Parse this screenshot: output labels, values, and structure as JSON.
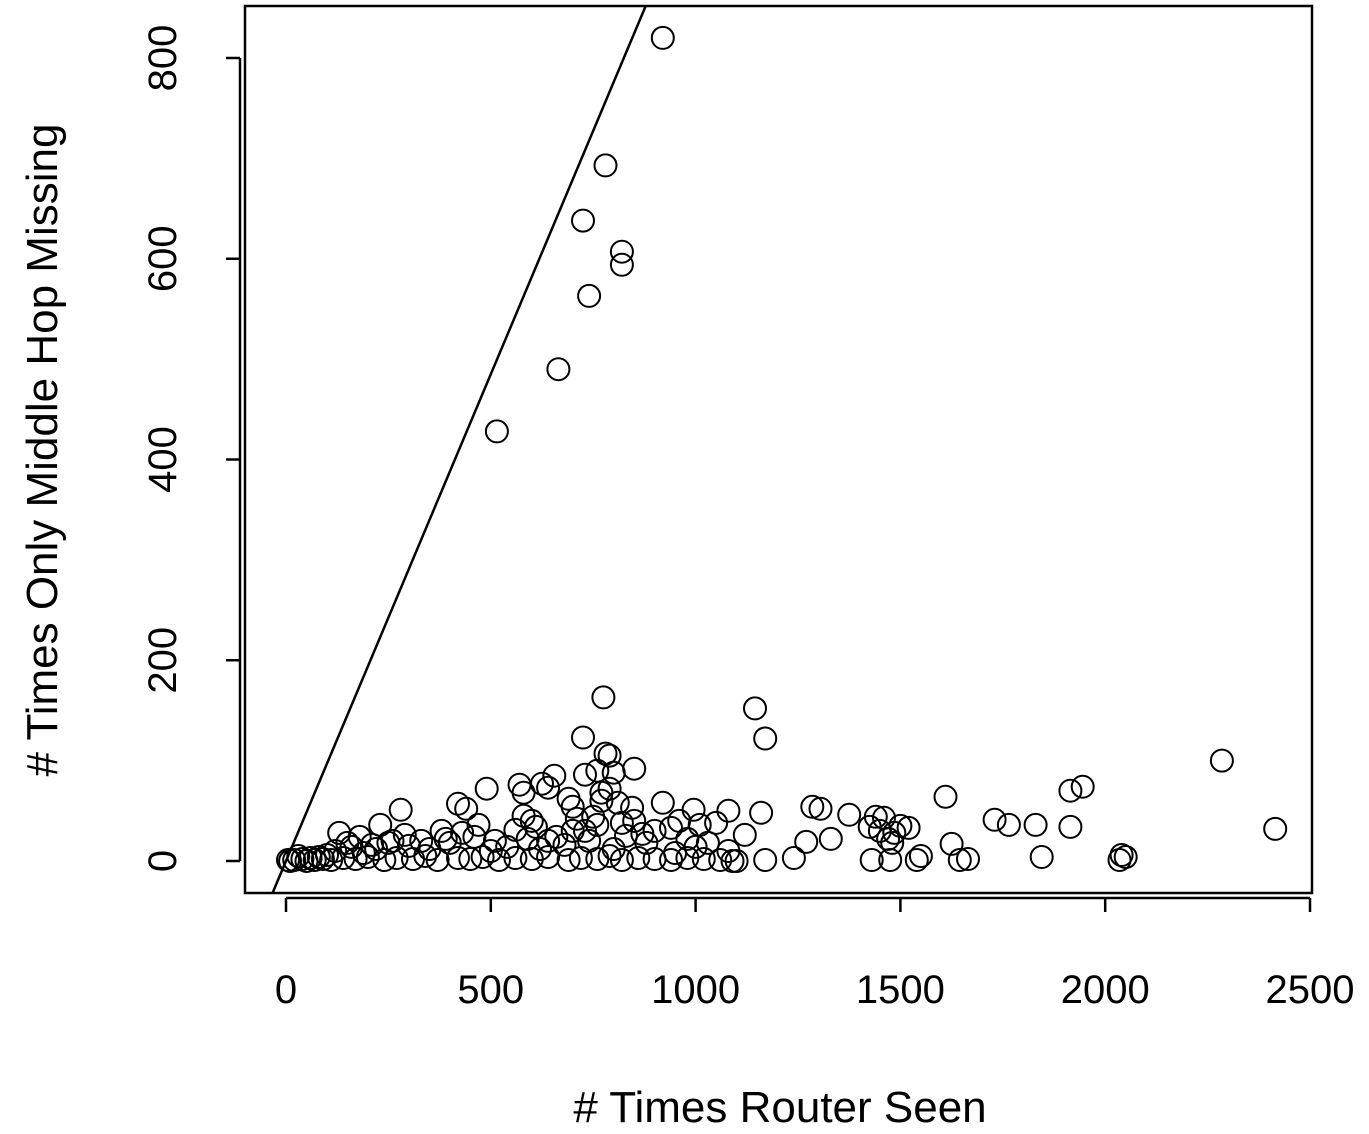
{
  "chart_data": {
    "type": "scatter",
    "title": "",
    "xlabel": "# Times Router Seen",
    "ylabel": "# Times Only Middle Hop Missing",
    "xlim": [
      -100,
      2500
    ],
    "ylim": [
      -30,
      850
    ],
    "xticks": [
      0,
      500,
      1000,
      1500,
      2000,
      2500
    ],
    "yticks": [
      0,
      200,
      400,
      600,
      800
    ],
    "grid": false,
    "legend": "none",
    "marker": "open-circle",
    "colors": {
      "marks": "#000000",
      "background": "#ffffff"
    },
    "reference_line": {
      "slope": 0.97,
      "intercept": 0
    },
    "points": [
      [
        920,
        820
      ],
      [
        780,
        693
      ],
      [
        725,
        638
      ],
      [
        820,
        607
      ],
      [
        820,
        594
      ],
      [
        740,
        563
      ],
      [
        665,
        490
      ],
      [
        515,
        428
      ],
      [
        775,
        163
      ],
      [
        1145,
        152
      ],
      [
        1170,
        122
      ],
      [
        725,
        123
      ],
      [
        780,
        107
      ],
      [
        790,
        105
      ],
      [
        2285,
        100
      ],
      [
        850,
        92
      ],
      [
        760,
        90
      ],
      [
        800,
        88
      ],
      [
        730,
        86
      ],
      [
        655,
        85
      ],
      [
        1945,
        74
      ],
      [
        1915,
        70
      ],
      [
        490,
        72
      ],
      [
        570,
        76
      ],
      [
        625,
        77
      ],
      [
        640,
        73
      ],
      [
        580,
        68
      ],
      [
        770,
        68
      ],
      [
        790,
        72
      ],
      [
        1610,
        64
      ],
      [
        920,
        58
      ],
      [
        420,
        57
      ],
      [
        440,
        52
      ],
      [
        1285,
        54
      ],
      [
        1305,
        52
      ],
      [
        845,
        53
      ],
      [
        995,
        51
      ],
      [
        1080,
        50
      ],
      [
        1160,
        48
      ],
      [
        1375,
        46
      ],
      [
        1440,
        44
      ],
      [
        1460,
        43
      ],
      [
        1730,
        41
      ],
      [
        1765,
        36
      ],
      [
        1830,
        36
      ],
      [
        1915,
        34
      ],
      [
        2415,
        32
      ],
      [
        1500,
        35
      ],
      [
        1520,
        33
      ],
      [
        1485,
        28
      ],
      [
        1425,
        34
      ],
      [
        1450,
        30
      ],
      [
        1330,
        22
      ],
      [
        1270,
        19
      ],
      [
        1120,
        26
      ],
      [
        1050,
        38
      ],
      [
        1010,
        36
      ],
      [
        960,
        40
      ],
      [
        940,
        33
      ],
      [
        900,
        30
      ],
      [
        870,
        27
      ],
      [
        830,
        25
      ],
      [
        700,
        30
      ],
      [
        610,
        34
      ],
      [
        560,
        31
      ],
      [
        470,
        36
      ],
      [
        380,
        30
      ],
      [
        280,
        51
      ],
      [
        230,
        36
      ],
      [
        130,
        28
      ],
      [
        180,
        24
      ],
      [
        1625,
        17
      ],
      [
        1480,
        18
      ],
      [
        1470,
        22
      ],
      [
        1845,
        4
      ],
      [
        1240,
        3
      ],
      [
        1170,
        1
      ],
      [
        1430,
        1
      ],
      [
        1475,
        1
      ],
      [
        1540,
        1
      ],
      [
        1550,
        5
      ],
      [
        1645,
        1
      ],
      [
        1665,
        2
      ],
      [
        2035,
        1
      ],
      [
        2040,
        6
      ],
      [
        2050,
        4
      ],
      [
        1100,
        0
      ],
      [
        1080,
        10
      ],
      [
        1000,
        14
      ],
      [
        950,
        8
      ],
      [
        880,
        18
      ],
      [
        800,
        12
      ],
      [
        740,
        20
      ],
      [
        680,
        16
      ],
      [
        620,
        12
      ],
      [
        540,
        14
      ],
      [
        500,
        10
      ],
      [
        460,
        24
      ],
      [
        400,
        18
      ],
      [
        350,
        12
      ],
      [
        300,
        15
      ],
      [
        260,
        20
      ],
      [
        220,
        12
      ],
      [
        190,
        8
      ],
      [
        160,
        14
      ],
      [
        120,
        10
      ],
      [
        100,
        6
      ],
      [
        80,
        4
      ],
      [
        60,
        3
      ],
      [
        40,
        2
      ],
      [
        30,
        5
      ],
      [
        20,
        1
      ],
      [
        10,
        0
      ],
      [
        5,
        1
      ],
      [
        50,
        0
      ],
      [
        70,
        1
      ],
      [
        90,
        2
      ],
      [
        110,
        1
      ],
      [
        140,
        3
      ],
      [
        170,
        2
      ],
      [
        200,
        4
      ],
      [
        240,
        1
      ],
      [
        270,
        3
      ],
      [
        310,
        2
      ],
      [
        340,
        5
      ],
      [
        370,
        1
      ],
      [
        420,
        3
      ],
      [
        450,
        2
      ],
      [
        480,
        4
      ],
      [
        520,
        1
      ],
      [
        560,
        3
      ],
      [
        600,
        2
      ],
      [
        640,
        4
      ],
      [
        690,
        1
      ],
      [
        720,
        3
      ],
      [
        760,
        2
      ],
      [
        790,
        5
      ],
      [
        820,
        1
      ],
      [
        860,
        3
      ],
      [
        900,
        2
      ],
      [
        940,
        1
      ],
      [
        980,
        3
      ],
      [
        1020,
        2
      ],
      [
        1060,
        1
      ],
      [
        1090,
        0
      ],
      [
        710,
        42
      ],
      [
        750,
        44
      ],
      [
        700,
        54
      ],
      [
        770,
        60
      ],
      [
        810,
        58
      ],
      [
        690,
        62
      ],
      [
        600,
        40
      ],
      [
        580,
        45
      ],
      [
        980,
        22
      ],
      [
        1030,
        18
      ],
      [
        850,
        40
      ],
      [
        820,
        38
      ],
      [
        760,
        36
      ],
      [
        730,
        30
      ],
      [
        660,
        24
      ],
      [
        640,
        20
      ],
      [
        590,
        22
      ],
      [
        510,
        20
      ],
      [
        430,
        28
      ],
      [
        390,
        22
      ],
      [
        330,
        20
      ],
      [
        290,
        26
      ],
      [
        250,
        18
      ],
      [
        210,
        16
      ],
      [
        150,
        18
      ]
    ]
  }
}
